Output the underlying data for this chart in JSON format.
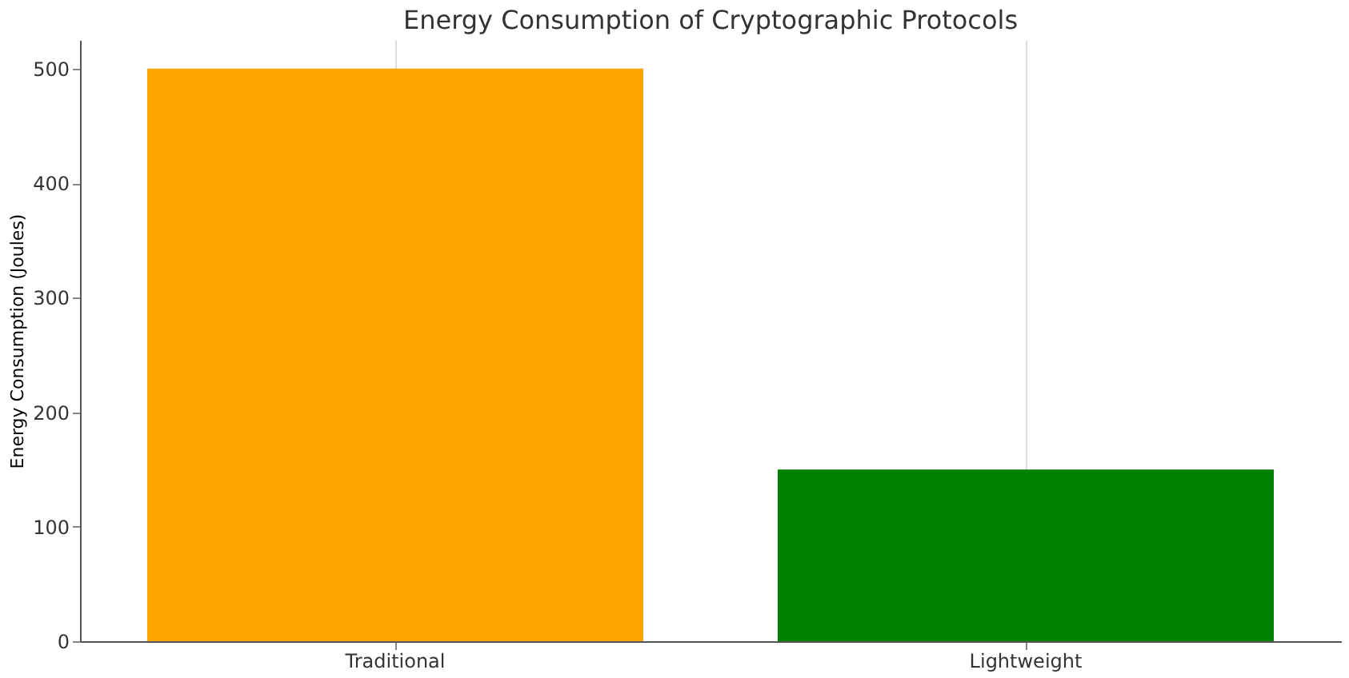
{
  "chart_data": {
    "type": "bar",
    "title": "Energy Consumption of Cryptographic Protocols",
    "ylabel": "Energy Consumption (Joules)",
    "categories": [
      "Traditional",
      "Lightweight"
    ],
    "values": [
      500,
      150
    ],
    "colors": [
      "#ffa500",
      "#008000"
    ],
    "ylim": [
      0,
      525
    ],
    "yticks": [
      0,
      100,
      200,
      300,
      400,
      500
    ],
    "grid": "x"
  }
}
